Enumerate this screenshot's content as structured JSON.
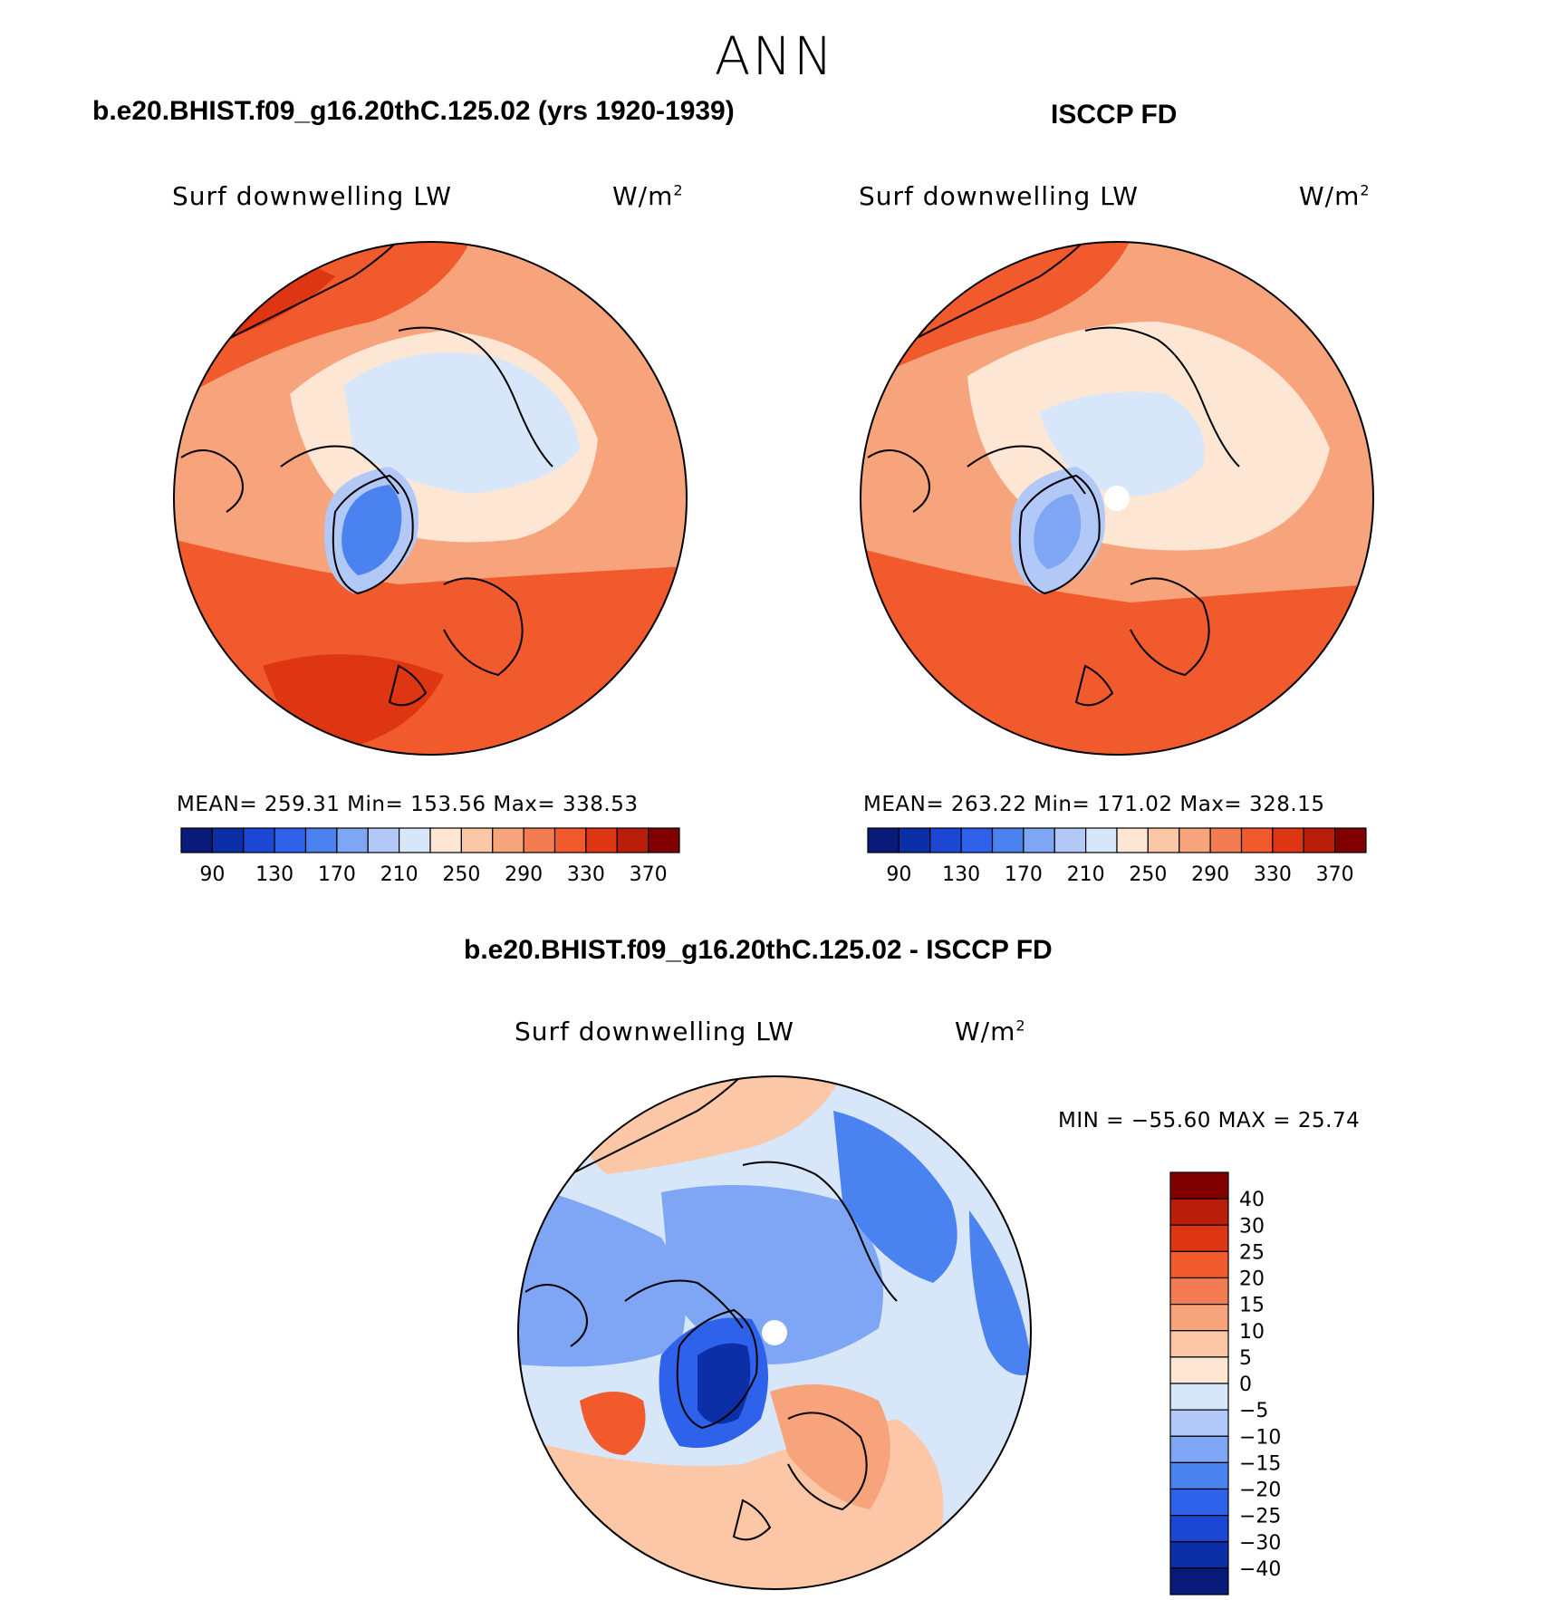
{
  "figure": {
    "title": "ANN",
    "panels": [
      {
        "id": "model",
        "case_title": "b.e20.BHIST.f09_g16.20thC.125.02 (yrs 1920-1939)",
        "variable": "Surf downwelling LW",
        "units_base": "W/m",
        "units_exp": "2",
        "stats": "MEAN= 259.31   Min= 153.56   Max= 338.53",
        "mean": 259.31,
        "min": 153.56,
        "max": 338.53
      },
      {
        "id": "obs",
        "case_title": "ISCCP FD",
        "variable": "Surf downwelling LW",
        "units_base": "W/m",
        "units_exp": "2",
        "stats": "MEAN= 263.22   Min= 171.02   Max= 328.15",
        "mean": 263.22,
        "min": 171.02,
        "max": 328.15
      },
      {
        "id": "diff",
        "case_title": "b.e20.BHIST.f09_g16.20thC.125.02 - ISCCP FD",
        "variable": "Surf downwelling LW",
        "units_base": "W/m",
        "units_exp": "2",
        "stats": "MIN = −55.60 MAX =   25.74",
        "min": -55.6,
        "max": 25.74
      }
    ],
    "abs_colorbar": {
      "colors": [
        "#0a1a7a",
        "#0c2ea6",
        "#1c46d4",
        "#2e62ea",
        "#4a82f0",
        "#7fa6f4",
        "#b2c8f6",
        "#d8e6fa",
        "#fde7d4",
        "#fbc7a6",
        "#f7a37c",
        "#f47c52",
        "#f15a2c",
        "#de3612",
        "#b81e0a",
        "#800000"
      ],
      "labels": [
        "90",
        "130",
        "170",
        "210",
        "250",
        "290",
        "330",
        "370"
      ]
    },
    "diff_colorbar": {
      "colors": [
        "#800000",
        "#b81e0a",
        "#de3612",
        "#f15a2c",
        "#f47c52",
        "#f7a37c",
        "#fbc7a6",
        "#fde7d4",
        "#d8e6fa",
        "#b2c8f6",
        "#7fa6f4",
        "#4a82f0",
        "#2e62ea",
        "#1c46d4",
        "#0c2ea6",
        "#0a1a7a"
      ],
      "labels": [
        "40",
        "30",
        "25",
        "20",
        "15",
        "10",
        "5",
        "0",
        "−5",
        "−10",
        "−15",
        "−20",
        "−25",
        "−30",
        "−40"
      ]
    }
  }
}
